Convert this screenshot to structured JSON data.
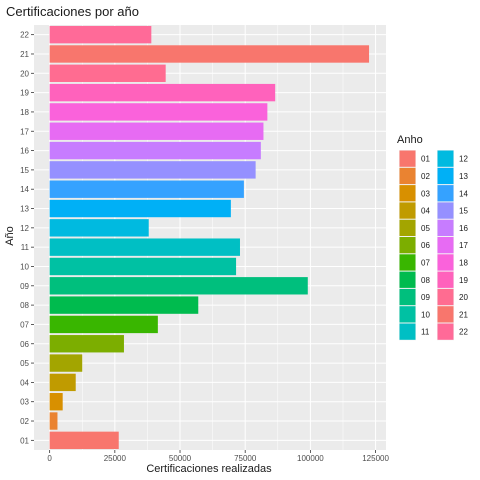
{
  "chart_data": {
    "type": "bar",
    "orientation": "horizontal",
    "title": "Certificaciones por año",
    "xlabel": "Certificaciones realizadas",
    "ylabel": "Año",
    "xlim": [
      -6000,
      129000
    ],
    "x_ticks": [
      0,
      25000,
      50000,
      75000,
      100000,
      125000
    ],
    "x_tick_labels": [
      "0",
      "25000",
      "50000",
      "75000",
      "100000",
      "125000"
    ],
    "grid": true,
    "legend": {
      "title": "Anho",
      "position": "right",
      "columns": 2
    },
    "categories": [
      "01",
      "02",
      "03",
      "04",
      "05",
      "06",
      "07",
      "08",
      "09",
      "10",
      "11",
      "12",
      "13",
      "14",
      "15",
      "16",
      "17",
      "18",
      "19",
      "20",
      "21",
      "22"
    ],
    "values": [
      26500,
      3000,
      5000,
      10000,
      12500,
      28500,
      41500,
      57000,
      99000,
      71500,
      73000,
      38000,
      69500,
      74500,
      79000,
      81000,
      82000,
      83500,
      86500,
      44500,
      122500,
      39000
    ],
    "colors": [
      "#F8766D",
      "#EA8331",
      "#D89000",
      "#C09B00",
      "#A3A500",
      "#7CAE00",
      "#39B600",
      "#00BB4E",
      "#00BF7D",
      "#00C1A3",
      "#00BFC4",
      "#00BAE0",
      "#00B0F6",
      "#35A2FF",
      "#9590FF",
      "#C77CFF",
      "#E76BF3",
      "#FA62DB",
      "#FF62BC",
      "#FF6C91",
      "#F8766D",
      "#FF6A98"
    ]
  }
}
